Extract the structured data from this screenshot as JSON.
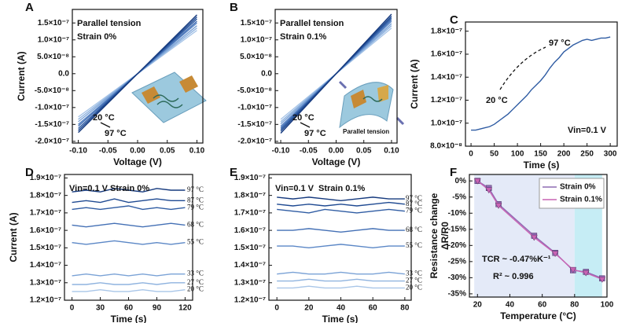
{
  "chart_data": [
    {
      "type": "line",
      "panel_label": "A",
      "xlabel": "Voltage (V)",
      "ylabel": "Current (A)",
      "annotations": [
        "Parallel tension",
        "Strain 0%",
        "20 °C",
        "97 °C"
      ],
      "xlim": [
        -0.11,
        0.11
      ],
      "ylim": [
        -2.05e-07,
        1.9e-07
      ],
      "xticks": [
        {
          "value": -0.1,
          "label": "-0.10"
        },
        {
          "value": -0.05,
          "label": "-0.05"
        },
        {
          "value": 0,
          "label": "0.00"
        },
        {
          "value": 0.05,
          "label": "0.05"
        },
        {
          "value": 0.1,
          "label": "0.10"
        }
      ],
      "yticks": [
        {
          "value": -2e-07,
          "label": "-2.0×10⁻⁷"
        },
        {
          "value": -1.5e-07,
          "label": "-1.5×10⁻⁷"
        },
        {
          "value": -1e-07,
          "label": "-1.0×10⁻⁷"
        },
        {
          "value": -5e-08,
          "label": "-5.0×10⁻⁸"
        },
        {
          "value": 0,
          "label": "0.0"
        },
        {
          "value": 5e-08,
          "label": "5.0×10⁻⁸"
        },
        {
          "value": 1e-07,
          "label": "1.0×10⁻⁷"
        },
        {
          "value": 1.5e-07,
          "label": "1.5×10⁻⁷"
        }
      ],
      "grid": false,
      "x": [
        -0.1,
        0,
        0.1
      ],
      "series": [
        {
          "color": "#a9c6e8",
          "values": [
            -1.28e-07,
            0,
            1.28e-07
          ]
        },
        {
          "color": "#8fb3df",
          "values": [
            -1.35e-07,
            0,
            1.35e-07
          ]
        },
        {
          "color": "#7aa2d6",
          "values": [
            -1.42e-07,
            0,
            1.42e-07
          ]
        },
        {
          "color": "#5b87c6",
          "values": [
            -1.5e-07,
            0,
            1.5e-07
          ]
        },
        {
          "color": "#4470b5",
          "values": [
            -1.55e-07,
            0,
            1.55e-07
          ]
        },
        {
          "color": "#2f5ca3",
          "values": [
            -1.62e-07,
            0,
            1.62e-07
          ]
        },
        {
          "color": "#1f4a92",
          "values": [
            -1.68e-07,
            0,
            1.68e-07
          ]
        },
        {
          "color": "#163a7e",
          "values": [
            -1.74e-07,
            0,
            1.74e-07
          ]
        }
      ]
    },
    {
      "type": "line",
      "panel_label": "B",
      "xlabel": "Voltage (V)",
      "annotations": [
        "Parallel tension",
        "Strain 0.1%",
        "20 °C",
        "97 °C",
        "Parallel tension"
      ],
      "xlim": [
        -0.11,
        0.11
      ],
      "ylim": [
        -2.05e-07,
        1.9e-07
      ],
      "xticks": [
        {
          "value": -0.1,
          "label": "-0.10"
        },
        {
          "value": -0.05,
          "label": "-0.05"
        },
        {
          "value": 0,
          "label": "0.00"
        },
        {
          "value": 0.05,
          "label": "0.05"
        },
        {
          "value": 0.1,
          "label": "0.10"
        }
      ],
      "yticks": [
        {
          "value": -2e-07,
          "label": "-2.0×10⁻⁷"
        },
        {
          "value": -1.5e-07,
          "label": "-1.5×10⁻⁷"
        },
        {
          "value": -1e-07,
          "label": "-1.0×10⁻⁷"
        },
        {
          "value": -5e-08,
          "label": "-5.0×10⁻⁸"
        },
        {
          "value": 0,
          "label": "0.0"
        },
        {
          "value": 5e-08,
          "label": "5.0×10⁻⁸"
        },
        {
          "value": 1e-07,
          "label": "1.0×10⁻⁷"
        },
        {
          "value": 1.5e-07,
          "label": "1.5×10⁻⁷"
        }
      ],
      "grid": false,
      "x": [
        -0.1,
        0,
        0.1
      ],
      "series": [
        {
          "color": "#a9c6e8",
          "values": [
            -1.35e-07,
            0,
            1.35e-07
          ]
        },
        {
          "color": "#8fb3df",
          "values": [
            -1.42e-07,
            0,
            1.42e-07
          ]
        },
        {
          "color": "#7aa2d6",
          "values": [
            -1.48e-07,
            0,
            1.48e-07
          ]
        },
        {
          "color": "#5b87c6",
          "values": [
            -1.55e-07,
            0,
            1.55e-07
          ]
        },
        {
          "color": "#4470b5",
          "values": [
            -1.6e-07,
            0,
            1.6e-07
          ]
        },
        {
          "color": "#2f5ca3",
          "values": [
            -1.65e-07,
            0,
            1.65e-07
          ]
        },
        {
          "color": "#1f4a92",
          "values": [
            -1.7e-07,
            0,
            1.7e-07
          ]
        },
        {
          "color": "#163a7e",
          "values": [
            -1.76e-07,
            0,
            1.76e-07
          ]
        }
      ]
    },
    {
      "type": "line",
      "panel_label": "C",
      "xlabel": "Time (s)",
      "ylabel": "Current (A)",
      "annotations": [
        "20 °C",
        "97 °C",
        "Vin=0.1 V"
      ],
      "xlim": [
        -12,
        315
      ],
      "ylim": [
        8e-08,
        1.88e-07
      ],
      "xticks": [
        0,
        50,
        100,
        150,
        200,
        250,
        300
      ],
      "yticks": [
        {
          "value": 8e-08,
          "label": "8.0×10⁻⁸"
        },
        {
          "value": 1e-07,
          "label": "1.0×10⁻⁷"
        },
        {
          "value": 1.2e-07,
          "label": "1.2×10⁻⁷"
        },
        {
          "value": 1.4e-07,
          "label": "1.4×10⁻⁷"
        },
        {
          "value": 1.6e-07,
          "label": "1.6×10⁻⁷"
        },
        {
          "value": 1.8e-07,
          "label": "1.8×10⁻⁷"
        }
      ],
      "grid": false,
      "x": [
        0,
        10,
        20,
        30,
        40,
        50,
        60,
        70,
        80,
        90,
        100,
        110,
        120,
        130,
        140,
        150,
        160,
        170,
        180,
        190,
        200,
        210,
        220,
        230,
        240,
        250,
        260,
        270,
        280,
        290,
        300
      ],
      "series": [
        {
          "color": "#2f5ca3",
          "values": [
            9.4e-08,
            9.4e-08,
            9.5e-08,
            9.6e-08,
            9.7e-08,
            9.9e-08,
            1.02e-07,
            1.05e-07,
            1.08e-07,
            1.12e-07,
            1.16e-07,
            1.2e-07,
            1.24e-07,
            1.29e-07,
            1.33e-07,
            1.37e-07,
            1.42e-07,
            1.48e-07,
            1.53e-07,
            1.57e-07,
            1.62e-07,
            1.65e-07,
            1.68e-07,
            1.7e-07,
            1.72e-07,
            1.73e-07,
            1.72e-07,
            1.73e-07,
            1.74e-07,
            1.74e-07,
            1.75e-07
          ]
        }
      ]
    },
    {
      "type": "line",
      "panel_label": "D",
      "xlabel": "Time (s)",
      "ylabel": "Current (A)",
      "annotations": [
        "Vin=0.1 V",
        "Strain 0%"
      ],
      "xlim": [
        -8,
        128
      ],
      "ylim": [
        1.2e-07,
        1.92e-07
      ],
      "xticks": [
        0,
        30,
        60,
        90,
        120
      ],
      "yticks": [
        {
          "value": 1.2e-07,
          "label": "1.2×10⁻⁷"
        },
        {
          "value": 1.3e-07,
          "label": "1.3×10⁻⁷"
        },
        {
          "value": 1.4e-07,
          "label": "1.4×10⁻⁷"
        },
        {
          "value": 1.5e-07,
          "label": "1.5×10⁻⁷"
        },
        {
          "value": 1.6e-07,
          "label": "1.6×10⁻⁷"
        },
        {
          "value": 1.7e-07,
          "label": "1.7×10⁻⁷"
        },
        {
          "value": 1.8e-07,
          "label": "1.8×10⁻⁷"
        },
        {
          "value": 1.9e-07,
          "label": "1.9×10⁻⁷"
        }
      ],
      "grid": false,
      "x": [
        0,
        15,
        30,
        45,
        60,
        75,
        90,
        105,
        120
      ],
      "series": [
        {
          "name": "97 °C",
          "color": "#163a7e",
          "values": [
            1.82e-07,
            1.83e-07,
            1.82e-07,
            1.84e-07,
            1.83e-07,
            1.82e-07,
            1.84e-07,
            1.83e-07,
            1.83e-07
          ]
        },
        {
          "name": "87 °C",
          "color": "#1f4a92",
          "values": [
            1.76e-07,
            1.77e-07,
            1.76e-07,
            1.78e-07,
            1.76e-07,
            1.77e-07,
            1.78e-07,
            1.77e-07,
            1.77e-07
          ]
        },
        {
          "name": "79 °C",
          "color": "#2f5ca3",
          "values": [
            1.72e-07,
            1.73e-07,
            1.72e-07,
            1.73e-07,
            1.74e-07,
            1.72e-07,
            1.73e-07,
            1.72e-07,
            1.73e-07
          ]
        },
        {
          "name": "68 °C",
          "color": "#4470b5",
          "values": [
            1.63e-07,
            1.62e-07,
            1.63e-07,
            1.64e-07,
            1.63e-07,
            1.62e-07,
            1.63e-07,
            1.64e-07,
            1.63e-07
          ]
        },
        {
          "name": "55 °C",
          "color": "#5b87c6",
          "values": [
            1.53e-07,
            1.52e-07,
            1.53e-07,
            1.54e-07,
            1.53e-07,
            1.52e-07,
            1.53e-07,
            1.52e-07,
            1.53e-07
          ]
        },
        {
          "name": "33 °C",
          "color": "#7aa2d6",
          "values": [
            1.34e-07,
            1.35e-07,
            1.34e-07,
            1.35e-07,
            1.34e-07,
            1.35e-07,
            1.34e-07,
            1.35e-07,
            1.35e-07
          ]
        },
        {
          "name": "27 °C",
          "color": "#8fb3df",
          "values": [
            1.29e-07,
            1.29e-07,
            1.3e-07,
            1.29e-07,
            1.29e-07,
            1.3e-07,
            1.29e-07,
            1.3e-07,
            1.3e-07
          ]
        },
        {
          "name": "20 °C",
          "color": "#a9c6e8",
          "values": [
            1.25e-07,
            1.25e-07,
            1.26e-07,
            1.25e-07,
            1.25e-07,
            1.26e-07,
            1.25e-07,
            1.25e-07,
            1.26e-07
          ]
        }
      ]
    },
    {
      "type": "line",
      "panel_label": "E",
      "xlabel": "Time (s)",
      "annotations": [
        "Vin=0.1 V",
        "Strain 0.1%"
      ],
      "xlim": [
        -5,
        84
      ],
      "ylim": [
        1.2e-07,
        1.92e-07
      ],
      "xticks": [
        0,
        20,
        40,
        60,
        80
      ],
      "yticks": [
        {
          "value": 1.2e-07,
          "label": "1.2×10⁻⁷"
        },
        {
          "value": 1.3e-07,
          "label": "1.3×10⁻⁷"
        },
        {
          "value": 1.4e-07,
          "label": "1.4×10⁻⁷"
        },
        {
          "value": 1.5e-07,
          "label": "1.5×10⁻⁷"
        },
        {
          "value": 1.6e-07,
          "label": "1.6×10⁻⁷"
        },
        {
          "value": 1.7e-07,
          "label": "1.7×10⁻⁷"
        },
        {
          "value": 1.8e-07,
          "label": "1.8×10⁻⁷"
        },
        {
          "value": 1.9e-07,
          "label": "1.9×10⁻⁷"
        }
      ],
      "grid": false,
      "x": [
        0,
        10,
        20,
        30,
        40,
        50,
        60,
        70,
        80
      ],
      "series": [
        {
          "name": "97 °C",
          "color": "#163a7e",
          "values": [
            1.79e-07,
            1.78e-07,
            1.79e-07,
            1.78e-07,
            1.77e-07,
            1.78e-07,
            1.79e-07,
            1.78e-07,
            1.78e-07
          ]
        },
        {
          "name": "87 °C",
          "color": "#1f4a92",
          "values": [
            1.75e-07,
            1.74e-07,
            1.75e-07,
            1.74e-07,
            1.75e-07,
            1.74e-07,
            1.75e-07,
            1.76e-07,
            1.75e-07
          ]
        },
        {
          "name": "79 °C",
          "color": "#2f5ca3",
          "values": [
            1.72e-07,
            1.71e-07,
            1.7e-07,
            1.72e-07,
            1.71e-07,
            1.7e-07,
            1.71e-07,
            1.72e-07,
            1.71e-07
          ]
        },
        {
          "name": "68 °C",
          "color": "#4470b5",
          "values": [
            1.6e-07,
            1.6e-07,
            1.61e-07,
            1.6e-07,
            1.59e-07,
            1.6e-07,
            1.61e-07,
            1.6e-07,
            1.6e-07
          ]
        },
        {
          "name": "55 °C",
          "color": "#5b87c6",
          "values": [
            1.51e-07,
            1.51e-07,
            1.5e-07,
            1.51e-07,
            1.52e-07,
            1.51e-07,
            1.5e-07,
            1.51e-07,
            1.51e-07
          ]
        },
        {
          "name": "33 °C",
          "color": "#7aa2d6",
          "values": [
            1.35e-07,
            1.36e-07,
            1.35e-07,
            1.35e-07,
            1.36e-07,
            1.35e-07,
            1.35e-07,
            1.36e-07,
            1.35e-07
          ]
        },
        {
          "name": "27 °C",
          "color": "#8fb3df",
          "values": [
            1.31e-07,
            1.31e-07,
            1.32e-07,
            1.31e-07,
            1.31e-07,
            1.32e-07,
            1.31e-07,
            1.31e-07,
            1.31e-07
          ]
        },
        {
          "name": "20 °C",
          "color": "#a9c6e8",
          "values": [
            1.27e-07,
            1.27e-07,
            1.28e-07,
            1.27e-07,
            1.27e-07,
            1.28e-07,
            1.27e-07,
            1.27e-07,
            1.27e-07
          ]
        }
      ]
    },
    {
      "type": "line",
      "panel_label": "F",
      "xlabel": "Temperature (°C)",
      "ylabel": [
        "Resistance change",
        "ΔR/R0"
      ],
      "annotations": [
        "TCR ~ -0.47%K⁻¹",
        "R² ~ 0.996"
      ],
      "xlim": [
        15,
        100
      ],
      "ylim": [
        -36,
        2
      ],
      "xticks": [
        20,
        40,
        60,
        80,
        100
      ],
      "yticks": [
        {
          "value": 0,
          "label": "0%"
        },
        {
          "value": -5,
          "label": "-5%"
        },
        {
          "value": -10,
          "label": "-10%"
        },
        {
          "value": -15,
          "label": "-15%"
        },
        {
          "value": -20,
          "label": "-20%"
        },
        {
          "value": -25,
          "label": "-25%"
        },
        {
          "value": -30,
          "label": "-30%"
        },
        {
          "value": -35,
          "label": "-35%"
        }
      ],
      "grid": false,
      "legend": "upper right",
      "regions": [
        {
          "x": [
            18,
            80
          ],
          "color": "#e4eaf8"
        },
        {
          "x": [
            80,
            97
          ],
          "color": "#c6edf5"
        }
      ],
      "x": [
        20,
        27,
        33,
        55,
        68,
        79,
        87,
        97
      ],
      "series": [
        {
          "name": "Strain 0%",
          "color": "#8e6bb4",
          "marker": "square",
          "values": [
            0,
            -2.2,
            -7.2,
            -17,
            -22.3,
            -27.7,
            -28.2,
            -30.2
          ]
        },
        {
          "name": "Strain 0.1%",
          "color": "#c964b4",
          "marker": "triangle",
          "values": [
            0,
            -2.8,
            -7.6,
            -17.5,
            -22.5,
            -27.5,
            -28.5,
            -30.5
          ]
        }
      ]
    }
  ]
}
